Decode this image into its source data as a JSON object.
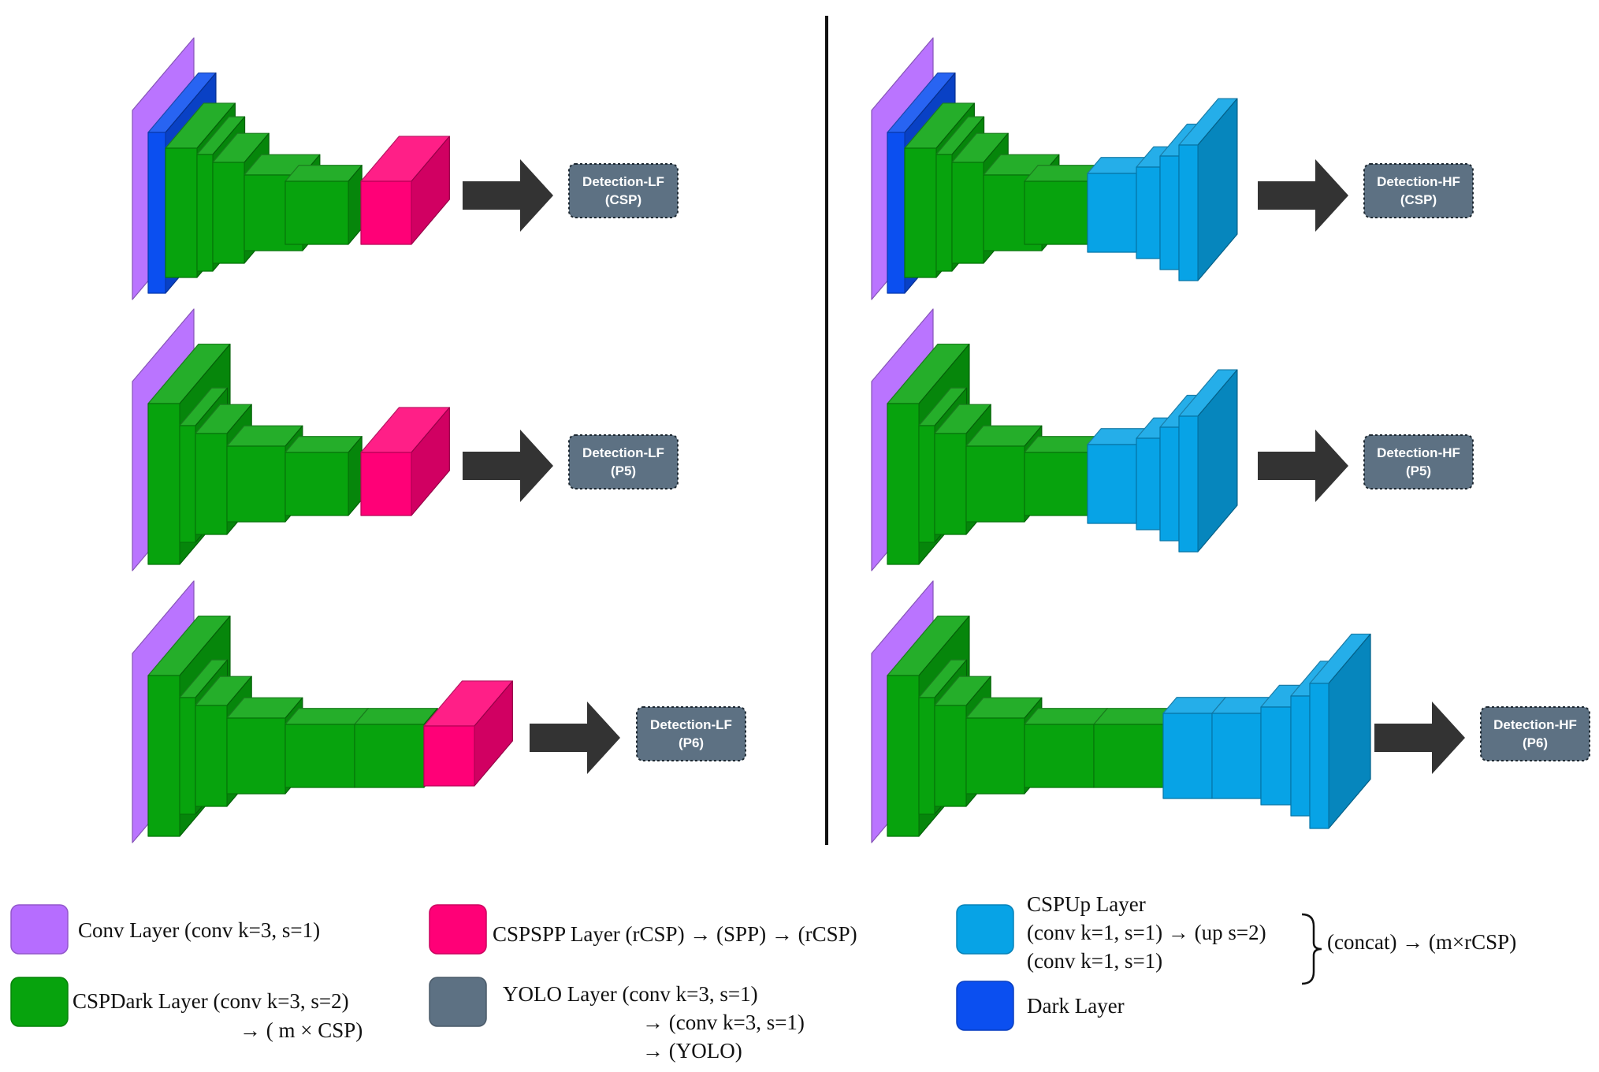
{
  "colors": {
    "conv": "#b66dff",
    "dark": "#0b4ff0",
    "cspdark": "#07a30d",
    "cspspp": "#ff0077",
    "cspup": "#07a3e6",
    "yolo": "#5d7183",
    "arrow": "#333333",
    "divider": "#111111"
  },
  "panels": {
    "left": [
      {
        "label_line1": "Detection-LF",
        "label_line2": "(CSP)"
      },
      {
        "label_line1": "Detection-LF",
        "label_line2": "(P5)"
      },
      {
        "label_line1": "Detection-LF",
        "label_line2": "(P6)"
      }
    ],
    "right": [
      {
        "label_line1": "Detection-HF",
        "label_line2": "(CSP)"
      },
      {
        "label_line1": "Detection-HF",
        "label_line2": "(P5)"
      },
      {
        "label_line1": "Detection-HF",
        "label_line2": "(P6)"
      }
    ]
  },
  "legend": {
    "conv": {
      "line1": "Conv Layer (conv k=3, s=1)",
      "icon": "purple-swatch"
    },
    "cspdark": {
      "line1": "CSPDark Layer (conv k=3, s=2)",
      "line2": "→ ( m × CSP)",
      "icon": "green-swatch"
    },
    "cspspp": {
      "line1": "CSPSPP Layer (rCSP) → (SPP) → (rCSP)",
      "icon": "pink-swatch"
    },
    "yolo": {
      "line1": "YOLO Layer (conv k=3, s=1)",
      "line2": "→ (conv k=3, s=1)",
      "line3": "→ (YOLO)",
      "icon": "slate-swatch"
    },
    "cspup": {
      "line1": "CSPUp Layer",
      "line2": "(conv k=1, s=1) → (up s=2)",
      "line3": "(conv k=1, s=1)",
      "suffix": "(concat) → (m×rCSP)",
      "icon": "cyan-swatch"
    },
    "dark": {
      "line1": "Dark Layer",
      "icon": "blue-swatch"
    }
  }
}
